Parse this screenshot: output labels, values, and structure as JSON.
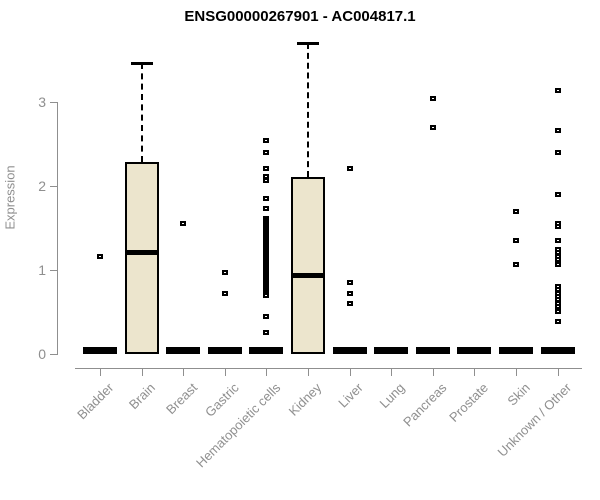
{
  "chart_data": {
    "type": "boxplot",
    "title": "ENSG00000267901 - AC004817.1",
    "ylabel": "Expression",
    "xlabel": "",
    "ylim": [
      0,
      3.8
    ],
    "yticks": [
      0,
      1,
      2,
      3
    ],
    "ytick_labels": [
      "0",
      "1",
      "2",
      "3"
    ],
    "grid": "off",
    "legend": "none",
    "categories": [
      "Bladder",
      "Brain",
      "Breast",
      "Gastric",
      "Hematopoietic cells",
      "Kidney",
      "Liver",
      "Lung",
      "Pancreas",
      "Prostate",
      "Skin",
      "Unknown / Other"
    ],
    "series": [
      {
        "category": "Bladder",
        "q1": 0,
        "median": 0,
        "q3": 0,
        "whisker_high": null,
        "outliers": [
          1.17
        ]
      },
      {
        "category": "Brain",
        "q1": 0,
        "median": 1.21,
        "q3": 2.28,
        "whisker_high": 3.46,
        "outliers": []
      },
      {
        "category": "Breast",
        "q1": 0,
        "median": 0,
        "q3": 0,
        "whisker_high": null,
        "outliers": [
          1.56
        ]
      },
      {
        "category": "Gastric",
        "q1": 0,
        "median": 0,
        "q3": 0,
        "whisker_high": null,
        "outliers": [
          0.98,
          0.73
        ]
      },
      {
        "category": "Hematopoietic cells",
        "q1": 0,
        "median": 0,
        "q3": 0,
        "whisker_high": null,
        "outliers": [
          2.55,
          2.41,
          2.22,
          2.12,
          2.07,
          1.86,
          1.74,
          1.62,
          1.6,
          1.57,
          1.55,
          1.52,
          1.5,
          1.48,
          1.45,
          1.43,
          1.4,
          1.38,
          1.36,
          1.33,
          1.31,
          1.29,
          1.26,
          1.24,
          1.21,
          1.19,
          1.17,
          1.14,
          1.12,
          1.1,
          1.07,
          1.05,
          1.02,
          1.0,
          0.98,
          0.95,
          0.93,
          0.9,
          0.88,
          0.86,
          0.83,
          0.81,
          0.79,
          0.76,
          0.74,
          0.72,
          0.7,
          0.45,
          0.26
        ]
      },
      {
        "category": "Kidney",
        "q1": 0,
        "median": 0.94,
        "q3": 2.11,
        "whisker_high": 3.7,
        "outliers": []
      },
      {
        "category": "Liver",
        "q1": 0,
        "median": 0,
        "q3": 0,
        "whisker_high": null,
        "outliers": [
          2.21,
          0.86,
          0.73,
          0.61
        ]
      },
      {
        "category": "Lung",
        "q1": 0,
        "median": 0,
        "q3": 0,
        "whisker_high": null,
        "outliers": []
      },
      {
        "category": "Pancreas",
        "q1": 0,
        "median": 0,
        "q3": 0,
        "whisker_high": null,
        "outliers": [
          3.05,
          2.7
        ]
      },
      {
        "category": "Prostate",
        "q1": 0,
        "median": 0,
        "q3": 0,
        "whisker_high": null,
        "outliers": []
      },
      {
        "category": "Skin",
        "q1": 0,
        "median": 0,
        "q3": 0,
        "whisker_high": null,
        "outliers": [
          1.7,
          1.36,
          1.07
        ]
      },
      {
        "category": "Unknown / Other",
        "q1": 0,
        "median": 0,
        "q3": 0,
        "whisker_high": null,
        "outliers": [
          3.14,
          2.67,
          2.41,
          1.9,
          1.56,
          1.52,
          1.36,
          1.25,
          1.21,
          1.17,
          1.13,
          1.1,
          1.07,
          0.81,
          0.77,
          0.73,
          0.69,
          0.65,
          0.61,
          0.57,
          0.51,
          0.39
        ]
      }
    ],
    "colors": {
      "box_fill": "#ece5cd",
      "box_border": "#000000",
      "median": "#000000",
      "whisker": "#000000",
      "axis": "#8f8f8f",
      "title": "#000000",
      "background": "#ffffff"
    }
  }
}
